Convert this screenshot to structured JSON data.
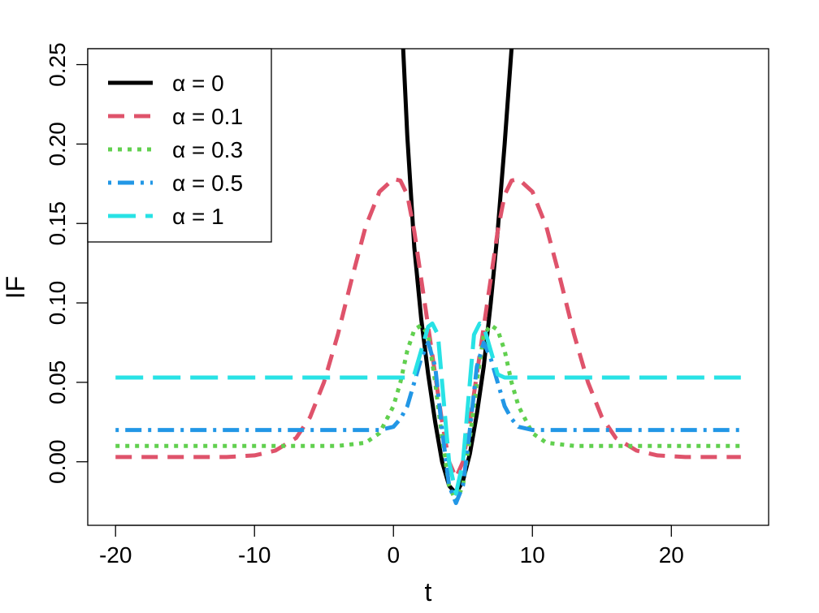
{
  "chart_data": {
    "type": "line",
    "xlabel": "t",
    "ylabel": "IF",
    "xlim": [
      -22,
      27
    ],
    "ylim": [
      -0.04,
      0.26
    ],
    "xticks": [
      -20,
      -10,
      0,
      10,
      20
    ],
    "xtick_labels": [
      "-20",
      "-10",
      "0",
      "10",
      "20"
    ],
    "yticks": [
      0.0,
      0.05,
      0.1,
      0.15,
      0.2,
      0.25
    ],
    "ytick_labels": [
      "0.00",
      "0.05",
      "0.10",
      "0.15",
      "0.20",
      "0.25"
    ],
    "grid": false,
    "legend_position": "top-left",
    "series": [
      {
        "name": "α = 0",
        "color": "#000000",
        "style": "solid",
        "points": [
          [
            0.7,
            0.26
          ],
          [
            1.0,
            0.205
          ],
          [
            1.5,
            0.135
          ],
          [
            2.0,
            0.09
          ],
          [
            2.5,
            0.055
          ],
          [
            3.0,
            0.025
          ],
          [
            3.5,
            0.0
          ],
          [
            4.0,
            -0.015
          ],
          [
            4.5,
            -0.02
          ],
          [
            5.0,
            -0.012
          ],
          [
            5.5,
            0.005
          ],
          [
            6.0,
            0.03
          ],
          [
            6.5,
            0.06
          ],
          [
            7.0,
            0.1
          ],
          [
            7.5,
            0.145
          ],
          [
            8.0,
            0.2
          ],
          [
            8.5,
            0.26
          ]
        ]
      },
      {
        "name": "α = 0.1",
        "color": "#DF536B",
        "style": "dashed",
        "points": [
          [
            -20,
            0.003
          ],
          [
            -12,
            0.003
          ],
          [
            -10,
            0.004
          ],
          [
            -8.5,
            0.007
          ],
          [
            -7,
            0.015
          ],
          [
            -6,
            0.028
          ],
          [
            -5,
            0.05
          ],
          [
            -4,
            0.08
          ],
          [
            -3,
            0.115
          ],
          [
            -2,
            0.148
          ],
          [
            -1,
            0.17
          ],
          [
            0,
            0.178
          ],
          [
            0.5,
            0.177
          ],
          [
            1,
            0.168
          ],
          [
            1.5,
            0.145
          ],
          [
            2,
            0.115
          ],
          [
            2.5,
            0.085
          ],
          [
            3,
            0.055
          ],
          [
            3.5,
            0.025
          ],
          [
            4,
            0.0
          ],
          [
            4.5,
            -0.01
          ],
          [
            5,
            0.0
          ],
          [
            5.5,
            0.025
          ],
          [
            6,
            0.055
          ],
          [
            6.5,
            0.085
          ],
          [
            7,
            0.115
          ],
          [
            7.5,
            0.145
          ],
          [
            8,
            0.168
          ],
          [
            8.5,
            0.177
          ],
          [
            9,
            0.178
          ],
          [
            10,
            0.17
          ],
          [
            11,
            0.148
          ],
          [
            12,
            0.115
          ],
          [
            13,
            0.08
          ],
          [
            14,
            0.05
          ],
          [
            15,
            0.028
          ],
          [
            16,
            0.015
          ],
          [
            17.5,
            0.007
          ],
          [
            19,
            0.004
          ],
          [
            21,
            0.003
          ],
          [
            25,
            0.003
          ]
        ]
      },
      {
        "name": "α = 0.3",
        "color": "#61D04F",
        "style": "dotted",
        "points": [
          [
            -20,
            0.01
          ],
          [
            -4,
            0.01
          ],
          [
            -2,
            0.012
          ],
          [
            -1,
            0.018
          ],
          [
            0,
            0.035
          ],
          [
            0.5,
            0.05
          ],
          [
            1,
            0.07
          ],
          [
            1.5,
            0.083
          ],
          [
            2,
            0.086
          ],
          [
            2.5,
            0.08
          ],
          [
            3,
            0.05
          ],
          [
            3.5,
            0.015
          ],
          [
            4,
            -0.015
          ],
          [
            4.5,
            -0.025
          ],
          [
            5,
            -0.015
          ],
          [
            5.5,
            0.015
          ],
          [
            6,
            0.05
          ],
          [
            6.5,
            0.08
          ],
          [
            7,
            0.086
          ],
          [
            7.5,
            0.083
          ],
          [
            8,
            0.07
          ],
          [
            8.5,
            0.05
          ],
          [
            9,
            0.035
          ],
          [
            10,
            0.018
          ],
          [
            11,
            0.012
          ],
          [
            13,
            0.01
          ],
          [
            25,
            0.01
          ]
        ]
      },
      {
        "name": "α = 0.5",
        "color": "#2297E6",
        "style": "dotdash",
        "points": [
          [
            -20,
            0.02
          ],
          [
            -1,
            0.02
          ],
          [
            0,
            0.022
          ],
          [
            0.5,
            0.027
          ],
          [
            1,
            0.035
          ],
          [
            1.5,
            0.05
          ],
          [
            2,
            0.065
          ],
          [
            2.5,
            0.075
          ],
          [
            3,
            0.06
          ],
          [
            3.5,
            0.02
          ],
          [
            4,
            -0.015
          ],
          [
            4.5,
            -0.026
          ],
          [
            5,
            -0.015
          ],
          [
            5.5,
            0.02
          ],
          [
            6,
            0.06
          ],
          [
            6.5,
            0.075
          ],
          [
            7,
            0.065
          ],
          [
            7.5,
            0.05
          ],
          [
            8,
            0.035
          ],
          [
            8.5,
            0.027
          ],
          [
            9,
            0.022
          ],
          [
            10,
            0.02
          ],
          [
            25,
            0.02
          ]
        ]
      },
      {
        "name": "α = 1",
        "color": "#28E2E5",
        "style": "longdash",
        "points": [
          [
            -20,
            0.053
          ],
          [
            1,
            0.053
          ],
          [
            1.5,
            0.055
          ],
          [
            2,
            0.07
          ],
          [
            2.5,
            0.085
          ],
          [
            2.8,
            0.087
          ],
          [
            3.2,
            0.08
          ],
          [
            3.5,
            0.05
          ],
          [
            4,
            0.0
          ],
          [
            4.5,
            -0.02
          ],
          [
            5,
            0.0
          ],
          [
            5.5,
            0.05
          ],
          [
            5.8,
            0.08
          ],
          [
            6.2,
            0.087
          ],
          [
            6.5,
            0.085
          ],
          [
            7,
            0.07
          ],
          [
            7.5,
            0.055
          ],
          [
            8,
            0.053
          ],
          [
            25,
            0.053
          ]
        ]
      }
    ]
  }
}
